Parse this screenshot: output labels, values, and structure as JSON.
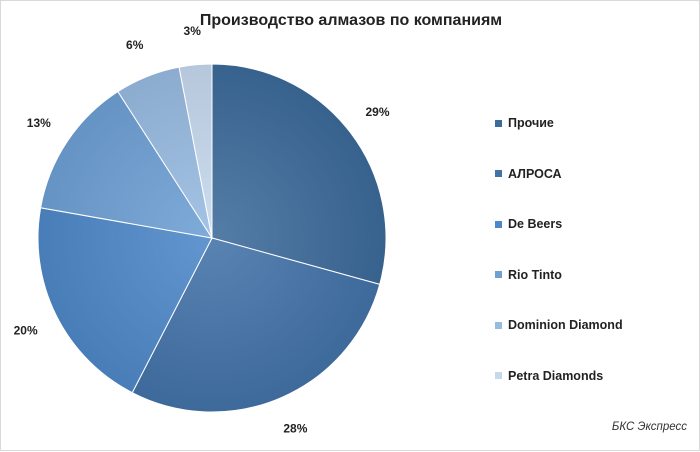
{
  "chart_data": {
    "type": "pie",
    "title": "Производство алмазов по компаниям",
    "slices": [
      {
        "label": "Прочие",
        "value": 29,
        "value_label": "29%",
        "color": "#3d6b9a"
      },
      {
        "label": "АЛРОСА",
        "value": 28,
        "value_label": "28%",
        "color": "#4272a8"
      },
      {
        "label": "De Beers",
        "value": 20,
        "value_label": "20%",
        "color": "#4e88c8"
      },
      {
        "label": "Rio Tinto",
        "value": 13,
        "value_label": "13%",
        "color": "#6ea0d4"
      },
      {
        "label": "Dominion Diamond",
        "value": 6,
        "value_label": "6%",
        "color": "#98bbe1"
      },
      {
        "label": "Petra Diamonds",
        "value": 3,
        "value_label": "3%",
        "color": "#c6d8ee"
      }
    ],
    "legend_position": "right"
  },
  "source": "БКС Экспресс"
}
